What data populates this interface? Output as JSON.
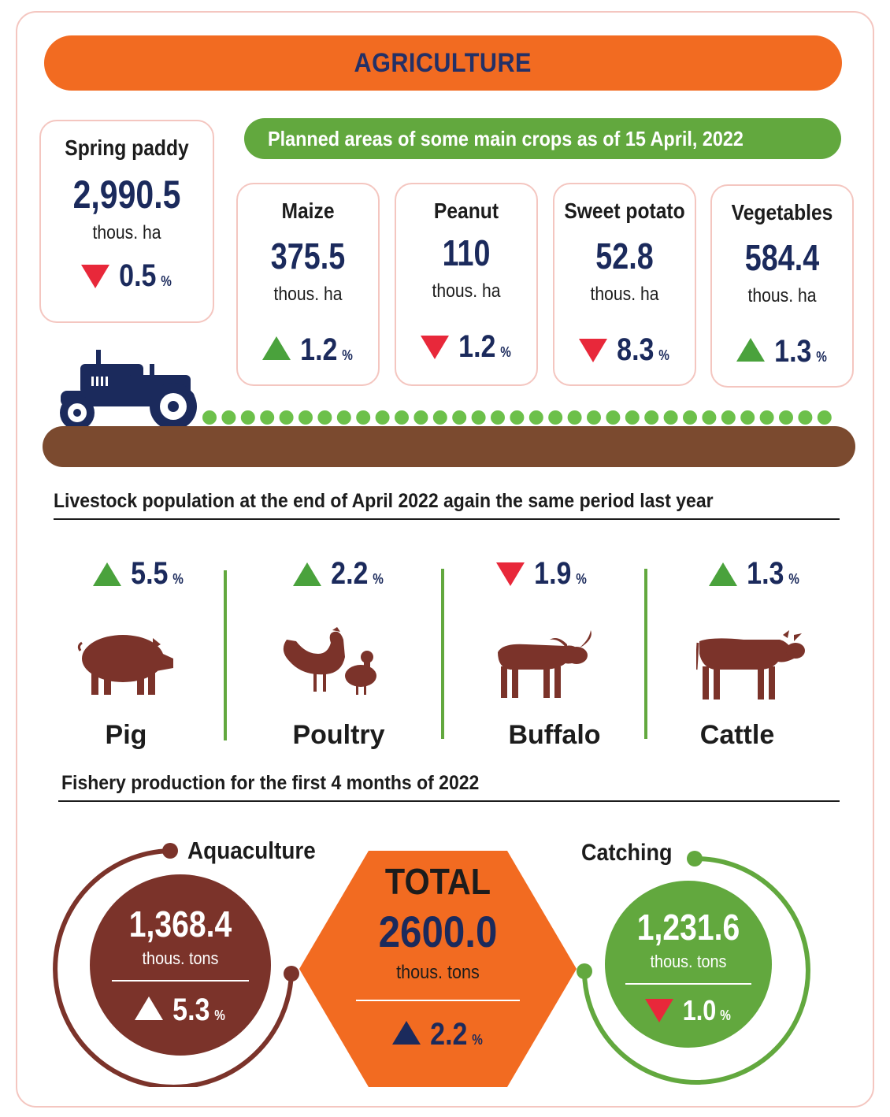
{
  "header": {
    "title": "AGRICULTURE"
  },
  "spring_paddy": {
    "name": "Spring paddy",
    "value": "2,990.5",
    "unit": "thous. ha",
    "change": "0.5",
    "change_unit": "%",
    "direction": "down"
  },
  "crops_heading": "Planned areas of some main crops as of 15 April, 2022",
  "crops": [
    {
      "name": "Maize",
      "value": "375.5",
      "unit": "thous. ha",
      "change": "1.2",
      "change_unit": "%",
      "direction": "up"
    },
    {
      "name": "Peanut",
      "value": "110",
      "unit": "thous. ha",
      "change": "1.2",
      "change_unit": "%",
      "direction": "down"
    },
    {
      "name": "Sweet potato",
      "value": "52.8",
      "unit": "thous. ha",
      "change": "8.3",
      "change_unit": "%",
      "direction": "down"
    },
    {
      "name": "Vegetables",
      "value": "584.4",
      "unit": "thous. ha",
      "change": "1.3",
      "change_unit": "%",
      "direction": "up"
    }
  ],
  "livestock_heading": "Livestock population at the end of April 2022 again the same period last year",
  "livestock": [
    {
      "name": "Pig",
      "change": "5.5",
      "change_unit": "%",
      "direction": "up",
      "icon": "pig-icon"
    },
    {
      "name": "Poultry",
      "change": "2.2",
      "change_unit": "%",
      "direction": "up",
      "icon": "poultry-icon"
    },
    {
      "name": "Buffalo",
      "change": "1.9",
      "change_unit": "%",
      "direction": "down",
      "icon": "buffalo-icon"
    },
    {
      "name": "Cattle",
      "change": "1.3",
      "change_unit": "%",
      "direction": "up",
      "icon": "cattle-icon"
    }
  ],
  "fishery_heading": "Fishery production for the first 4 months of 2022",
  "fishery": {
    "aquaculture": {
      "label": "Aquaculture",
      "value": "1,368.4",
      "unit": "thous. tons",
      "change": "5.3",
      "change_unit": "%",
      "direction": "up"
    },
    "total": {
      "label": "TOTAL",
      "value": "2600.0",
      "unit": "thous. tons",
      "change": "2.2",
      "change_unit": "%",
      "direction": "up"
    },
    "catching": {
      "label": "Catching",
      "value": "1,231.6",
      "unit": "thous. tons",
      "change": "1.0",
      "change_unit": "%",
      "direction": "down"
    }
  },
  "colors": {
    "orange": "#f26b21",
    "green": "#62a83e",
    "brown": "#7b332a",
    "navy": "#1b2a5c",
    "up": "#4aa23c",
    "down": "#e8283a"
  }
}
